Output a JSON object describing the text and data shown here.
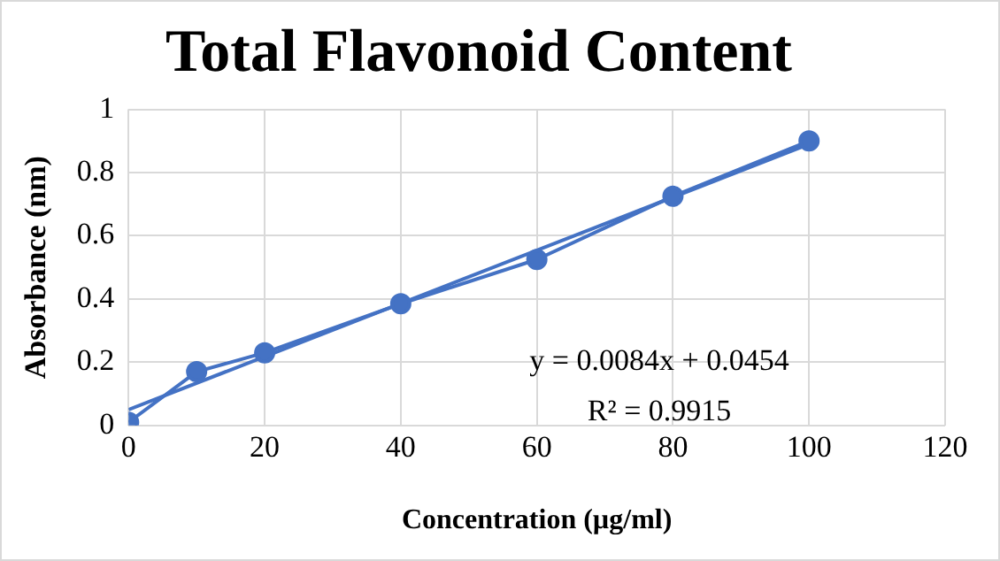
{
  "chart_data": {
    "type": "line",
    "title": "Total Flavonoid Content",
    "xlabel": "Concentration (µg/ml)",
    "ylabel": "Absorbance (nm)",
    "x": [
      0,
      10,
      20,
      40,
      60,
      80,
      100
    ],
    "series": [
      {
        "color": "#4472c4",
        "values": [
          0.01,
          0.17,
          0.23,
          0.385,
          0.525,
          0.725,
          0.9
        ],
        "marker": "circle"
      },
      {
        "type": "line",
        "color": "#4472c4",
        "x": [
          0,
          100
        ],
        "values": [
          0.05,
          0.89
        ],
        "marker": "none"
      }
    ],
    "annotations": [
      "y = 0.0084x + 0.0454",
      "R² = 0.9915"
    ],
    "xlim": [
      0,
      120
    ],
    "xticks": [
      0,
      20,
      40,
      60,
      80,
      100,
      120
    ],
    "ylim": [
      0,
      1
    ],
    "yticks": [
      0,
      0.2,
      0.4,
      0.6,
      0.8,
      1
    ],
    "grid": true,
    "legend": false,
    "line_style": "solid"
  }
}
